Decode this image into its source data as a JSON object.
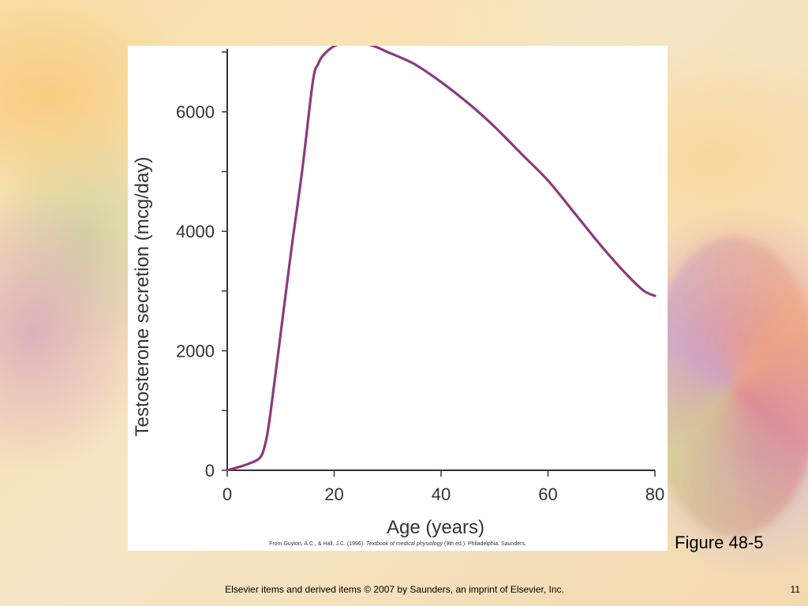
{
  "slide": {
    "figure_label": "Figure 48-5",
    "footer": "Elsevier items and derived items © 2007 by Saunders, an imprint of Elsevier, Inc.",
    "page_number": "11",
    "citation": {
      "prefix": "From Guyton, A.C., & Hall, J.C. (1996). ",
      "title": "Textbook of medical physiology",
      "suffix": " (9th ed.). Philadelphia: Saunders."
    }
  },
  "colors": {
    "line": "#8b3a7f",
    "axis": "#333333"
  },
  "chart_data": {
    "type": "line",
    "xlabel": "Age (years)",
    "ylabel": "Testosterone secretion (mcg/day)",
    "xlim": [
      0,
      80
    ],
    "ylim": [
      0,
      7000
    ],
    "x_ticks": [
      0,
      20,
      40,
      60,
      80
    ],
    "y_ticks": [
      0,
      2000,
      4000,
      6000
    ],
    "y_minor_step": 1000,
    "grid": false,
    "series": [
      {
        "x": [
          0,
          2,
          4,
          6,
          7,
          8,
          10,
          12,
          14,
          16,
          17,
          18,
          20,
          22,
          24,
          26,
          28,
          30,
          35,
          40,
          45,
          50,
          55,
          60,
          65,
          70,
          75,
          78,
          80
        ],
        "values": [
          0,
          50,
          110,
          200,
          400,
          900,
          2300,
          3700,
          5000,
          6500,
          6800,
          6950,
          7100,
          7150,
          7160,
          7140,
          7080,
          7000,
          6800,
          6500,
          6150,
          5750,
          5300,
          4850,
          4300,
          3750,
          3250,
          3000,
          2920
        ]
      }
    ]
  }
}
